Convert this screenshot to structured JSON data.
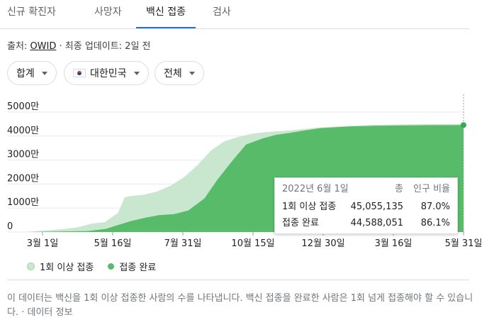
{
  "tabs": [
    "신규 확진자",
    "사망자",
    "백신 접종",
    "검사"
  ],
  "active_tab": 2,
  "source": {
    "prefix": "출처: ",
    "link": "OWID",
    "suffix": " · 최종 업데이트: 2일 전"
  },
  "filters": {
    "aggregate": "합계",
    "country": "대한민국",
    "scope": "전체"
  },
  "chart_data": {
    "type": "area",
    "y_ticks": [
      "5000만",
      "4000만",
      "3000만",
      "2000만",
      "1000만",
      "0"
    ],
    "x_ticks": [
      "3월 1일",
      "5월 16일",
      "7월 31일",
      "10월 15일",
      "12월 30일",
      "3월 16일",
      "5월 31일"
    ],
    "ylim": [
      0,
      50000000
    ],
    "series": [
      {
        "name": "1회 이상 접종",
        "color": "#c9e6cf",
        "x": [
          "2021-02-26",
          "2021-03-10",
          "2021-03-24",
          "2021-04-07",
          "2021-04-21",
          "2021-05-05",
          "2021-05-19",
          "2021-06-02",
          "2021-06-09",
          "2021-06-16",
          "2021-06-30",
          "2021-07-14",
          "2021-07-28",
          "2021-08-11",
          "2021-08-25",
          "2021-09-08",
          "2021-09-22",
          "2021-10-06",
          "2021-10-20",
          "2021-11-03",
          "2021-11-17",
          "2021-12-01",
          "2021-12-15",
          "2022-01-01",
          "2022-02-01",
          "2022-03-01",
          "2022-04-01",
          "2022-05-01",
          "2022-06-01"
        ],
        "values": [
          0,
          400000,
          800000,
          1300000,
          2000000,
          3500000,
          4100000,
          8000000,
          14500000,
          15000000,
          15600000,
          17000000,
          19500000,
          23000000,
          28000000,
          34000000,
          37800000,
          39600000,
          40900000,
          41600000,
          42000000,
          42400000,
          43000000,
          43600000,
          44300000,
          44700000,
          44900000,
          45000000,
          45055135
        ]
      },
      {
        "name": "접종 완료",
        "color": "#57bb6a",
        "x": [
          "2021-02-26",
          "2021-04-01",
          "2021-05-01",
          "2021-05-20",
          "2021-06-15",
          "2021-07-01",
          "2021-07-15",
          "2021-07-31",
          "2021-08-15",
          "2021-09-01",
          "2021-09-15",
          "2021-10-01",
          "2021-10-15",
          "2021-11-01",
          "2021-11-15",
          "2021-12-01",
          "2021-12-15",
          "2022-01-01",
          "2022-02-01",
          "2022-03-01",
          "2022-04-01",
          "2022-05-01",
          "2022-06-01"
        ],
        "values": [
          0,
          200000,
          400000,
          1300000,
          4500000,
          6000000,
          7000000,
          7500000,
          9000000,
          14000000,
          22000000,
          30000000,
          36500000,
          39000000,
          40500000,
          41400000,
          42300000,
          43300000,
          44000000,
          44300000,
          44450000,
          44550000,
          44588051
        ]
      }
    ]
  },
  "tooltip": {
    "date": "2022년 6월 1일",
    "col_total": "총",
    "col_ratio": "인구 비율",
    "rows": [
      {
        "label": "1회 이상 접종",
        "total": "45,055,135",
        "ratio": "87.0%"
      },
      {
        "label": "접종 완료",
        "total": "44,588,051",
        "ratio": "86.1%"
      }
    ]
  },
  "legend": [
    "1회 이상 접종",
    "접종 완료"
  ],
  "footer": "이 데이터는 백신을 1회 이상 접종한 사람의 수를 나타냅니다. 백신 접종을 완료한 사람은 1회 넘게 접종해야 할 수 있습니다. · 데이터 정보"
}
